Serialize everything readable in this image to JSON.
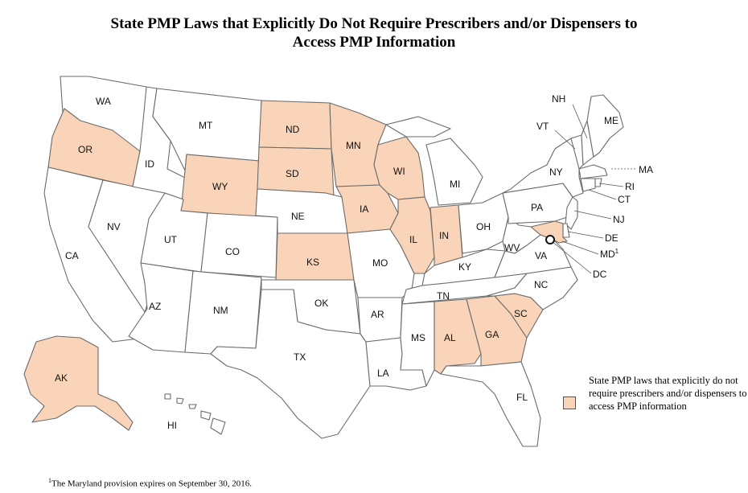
{
  "title_line1": "State PMP Laws that Explicitly Do Not Require Prescribers and/or Dispensers to",
  "title_line2": "Access PMP Information",
  "colors": {
    "highlight": "#f9d4b8",
    "default": "#ffffff",
    "border": "#6b6b6b"
  },
  "legend": {
    "text": "State PMP laws that explicitly do not require prescribers and/or dispensers to access PMP information",
    "color": "#f9d4b8"
  },
  "footnote": {
    "marker": "1",
    "text": "The Maryland provision expires on September 30, 2016."
  },
  "md_marker": "1",
  "states": {
    "WA": {
      "label": "WA",
      "highlighted": false
    },
    "OR": {
      "label": "OR",
      "highlighted": true
    },
    "CA": {
      "label": "CA",
      "highlighted": false
    },
    "NV": {
      "label": "NV",
      "highlighted": false
    },
    "ID": {
      "label": "ID",
      "highlighted": false
    },
    "MT": {
      "label": "MT",
      "highlighted": false
    },
    "WY": {
      "label": "WY",
      "highlighted": true
    },
    "UT": {
      "label": "UT",
      "highlighted": false
    },
    "AZ": {
      "label": "AZ",
      "highlighted": false
    },
    "CO": {
      "label": "CO",
      "highlighted": false
    },
    "NM": {
      "label": "NM",
      "highlighted": false
    },
    "ND": {
      "label": "ND",
      "highlighted": true
    },
    "SD": {
      "label": "SD",
      "highlighted": true
    },
    "NE": {
      "label": "NE",
      "highlighted": false
    },
    "KS": {
      "label": "KS",
      "highlighted": true
    },
    "OK": {
      "label": "OK",
      "highlighted": false
    },
    "TX": {
      "label": "TX",
      "highlighted": false
    },
    "MN": {
      "label": "MN",
      "highlighted": true
    },
    "IA": {
      "label": "IA",
      "highlighted": true
    },
    "MO": {
      "label": "MO",
      "highlighted": false
    },
    "AR": {
      "label": "AR",
      "highlighted": false
    },
    "LA": {
      "label": "LA",
      "highlighted": false
    },
    "WI": {
      "label": "WI",
      "highlighted": true
    },
    "IL": {
      "label": "IL",
      "highlighted": true
    },
    "MI": {
      "label": "MI",
      "highlighted": false
    },
    "IN": {
      "label": "IN",
      "highlighted": true
    },
    "OH": {
      "label": "OH",
      "highlighted": false
    },
    "KY": {
      "label": "KY",
      "highlighted": false
    },
    "TN": {
      "label": "TN",
      "highlighted": false
    },
    "MS": {
      "label": "MS",
      "highlighted": false
    },
    "AL": {
      "label": "AL",
      "highlighted": true
    },
    "GA": {
      "label": "GA",
      "highlighted": true
    },
    "FL": {
      "label": "FL",
      "highlighted": false
    },
    "SC": {
      "label": "SC",
      "highlighted": true
    },
    "NC": {
      "label": "NC",
      "highlighted": false
    },
    "VA": {
      "label": "VA",
      "highlighted": false
    },
    "WV": {
      "label": "WV",
      "highlighted": false
    },
    "PA": {
      "label": "PA",
      "highlighted": false
    },
    "NY": {
      "label": "NY",
      "highlighted": false
    },
    "VT": {
      "label": "VT",
      "highlighted": false
    },
    "NH": {
      "label": "NH",
      "highlighted": false
    },
    "ME": {
      "label": "ME",
      "highlighted": false
    },
    "MA": {
      "label": "MA",
      "highlighted": false
    },
    "RI": {
      "label": "RI",
      "highlighted": false
    },
    "CT": {
      "label": "CT",
      "highlighted": false
    },
    "NJ": {
      "label": "NJ",
      "highlighted": false
    },
    "DE": {
      "label": "DE",
      "highlighted": false
    },
    "MD": {
      "label": "MD",
      "highlighted": true
    },
    "DC": {
      "label": "DC",
      "highlighted": false
    },
    "AK": {
      "label": "AK",
      "highlighted": true
    },
    "HI": {
      "label": "HI",
      "highlighted": false
    }
  }
}
